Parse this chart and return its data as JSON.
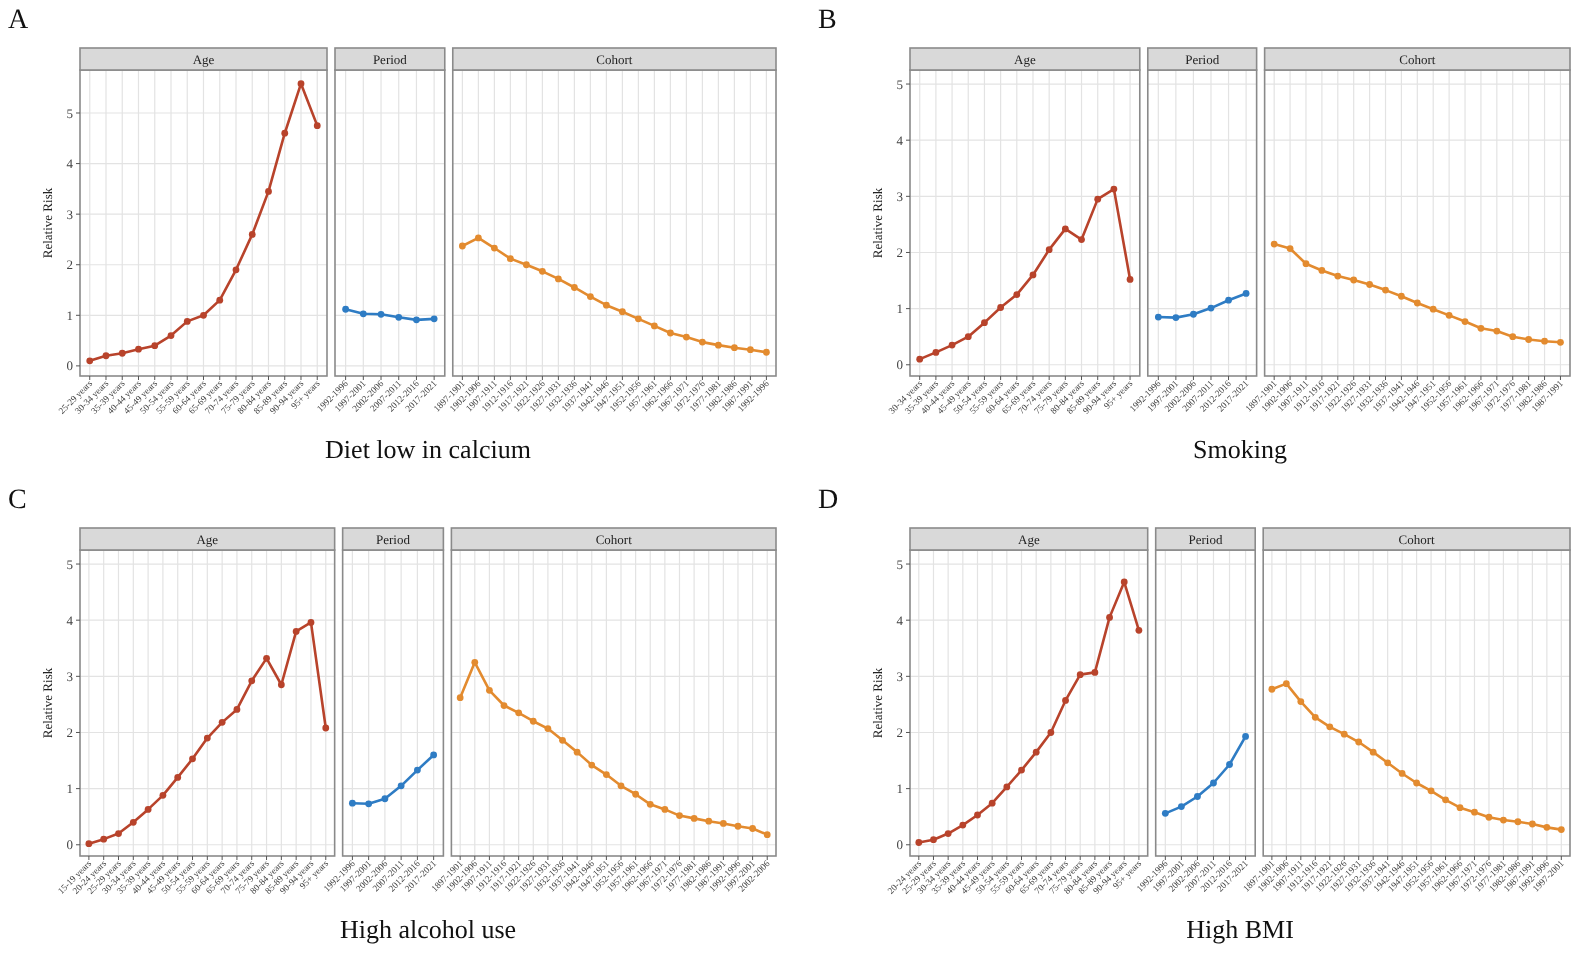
{
  "chart_data": [
    {
      "type": "line",
      "title": "Age",
      "ylabel": "Relative Risk",
      "annotations": [
        "A"
      ],
      "categories": [
        "25-29 years",
        "30-34 years",
        "35-39 years",
        "40-44 years",
        "45-49 years",
        "50-54 years",
        "55-59 years",
        "60-64 years",
        "65-69 years",
        "70-74 years",
        "75-79 years",
        "80-84 years",
        "85-89 years",
        "90-94 years",
        "95+ years"
      ],
      "series": [
        {
          "color": "#b8432b",
          "values": [
            0.1,
            0.2,
            0.25,
            0.33,
            0.4,
            0.6,
            0.88,
            1.0,
            1.3,
            1.9,
            2.6,
            3.45,
            4.6,
            5.58,
            4.75
          ]
        }
      ],
      "ylim": [
        -0.2,
        5.85
      ],
      "yticks": [
        0,
        1,
        2,
        3,
        4,
        5
      ],
      "grid": true,
      "marker": "circle"
    },
    {
      "type": "line",
      "title": "Period",
      "xlabel": "Diet low in calcium",
      "categories": [
        "1992-1996",
        "1997-2001",
        "2002-2006",
        "2007-2011",
        "2012-2016",
        "2017-2021"
      ],
      "series": [
        {
          "color": "#2e7cc4",
          "values": [
            1.12,
            1.03,
            1.02,
            0.96,
            0.91,
            0.93
          ]
        }
      ],
      "ylim": [
        -0.2,
        5.85
      ],
      "yticks": [
        0,
        1,
        2,
        3,
        4,
        5
      ],
      "grid": true,
      "marker": "circle",
      "tick_labels": "x"
    },
    {
      "type": "line",
      "title": "Cohort",
      "categories": [
        "1897-1901",
        "1902-1906",
        "1907-1911",
        "1912-1916",
        "1917-1921",
        "1922-1926",
        "1927-1931",
        "1932-1936",
        "1937-1941",
        "1942-1946",
        "1947-1951",
        "1952-1956",
        "1957-1961",
        "1962-1966",
        "1967-1971",
        "1972-1976",
        "1977-1981",
        "1982-1986",
        "1987-1991",
        "1992-1996"
      ],
      "series": [
        {
          "color": "#e38b2f",
          "values": [
            2.37,
            2.53,
            2.33,
            2.12,
            2.0,
            1.87,
            1.72,
            1.55,
            1.37,
            1.2,
            1.07,
            0.93,
            0.79,
            0.65,
            0.57,
            0.47,
            0.41,
            0.36,
            0.32,
            0.27
          ]
        }
      ],
      "ylim": [
        -0.2,
        5.85
      ],
      "yticks": [
        0,
        1,
        2,
        3,
        4,
        5
      ],
      "grid": true,
      "marker": "circle",
      "tick_labels": "x"
    },
    {
      "type": "line",
      "title": "Age",
      "ylabel": "Relative Risk",
      "annotations": [
        "B"
      ],
      "categories": [
        "30-34 years",
        "35-39 years",
        "40-44 years",
        "45-49 years",
        "50-54 years",
        "55-59 years",
        "60-64 years",
        "65-69 years",
        "70-74 years",
        "75-79 years",
        "80-84 years",
        "85-89 years",
        "90-94 years",
        "95+ years"
      ],
      "series": [
        {
          "color": "#b8432b",
          "values": [
            0.1,
            0.22,
            0.35,
            0.5,
            0.75,
            1.02,
            1.25,
            1.6,
            2.05,
            2.42,
            2.23,
            2.95,
            3.13,
            1.52
          ]
        }
      ],
      "ylim": [
        -0.2,
        5.25
      ],
      "yticks": [
        0,
        1,
        2,
        3,
        4,
        5
      ],
      "grid": true,
      "marker": "circle"
    },
    {
      "type": "line",
      "title": "Period",
      "xlabel": "Smoking",
      "categories": [
        "1992-1996",
        "1997-2001",
        "2002-2006",
        "2007-2011",
        "2012-2016",
        "2017-2021"
      ],
      "series": [
        {
          "color": "#2e7cc4",
          "values": [
            0.85,
            0.84,
            0.9,
            1.01,
            1.15,
            1.27
          ]
        }
      ],
      "ylim": [
        -0.2,
        5.25
      ],
      "yticks": [
        0,
        1,
        2,
        3,
        4,
        5
      ],
      "grid": true,
      "marker": "circle",
      "tick_labels": "x"
    },
    {
      "type": "line",
      "title": "Cohort",
      "categories": [
        "1897-1901",
        "1902-1906",
        "1907-1911",
        "1912-1916",
        "1917-1921",
        "1922-1926",
        "1927-1931",
        "1932-1936",
        "1937-1941",
        "1942-1946",
        "1947-1951",
        "1952-1956",
        "1957-1961",
        "1962-1966",
        "1967-1971",
        "1972-1976",
        "1977-1981",
        "1982-1986",
        "1987-1991"
      ],
      "series": [
        {
          "color": "#e38b2f",
          "values": [
            2.15,
            2.07,
            1.8,
            1.68,
            1.58,
            1.51,
            1.43,
            1.33,
            1.22,
            1.1,
            0.99,
            0.88,
            0.77,
            0.65,
            0.6,
            0.5,
            0.45,
            0.42,
            0.4
          ]
        }
      ],
      "ylim": [
        -0.2,
        5.25
      ],
      "yticks": [
        0,
        1,
        2,
        3,
        4,
        5
      ],
      "grid": true,
      "marker": "circle",
      "tick_labels": "x"
    },
    {
      "type": "line",
      "title": "Age",
      "ylabel": "Relative Risk",
      "annotations": [
        "C"
      ],
      "categories": [
        "15-19 years",
        "20-24 years",
        "25-29 years",
        "30-34 years",
        "35-39 years",
        "40-44 years",
        "45-49 years",
        "50-54 years",
        "55-59 years",
        "60-64 years",
        "65-69 years",
        "70-74 years",
        "75-79 years",
        "80-84 years",
        "85-89 years",
        "90-94 years",
        "95+ years"
      ],
      "series": [
        {
          "color": "#b8432b",
          "values": [
            0.02,
            0.1,
            0.2,
            0.4,
            0.63,
            0.88,
            1.2,
            1.53,
            1.9,
            2.18,
            2.41,
            2.92,
            3.32,
            2.85,
            3.8,
            3.96,
            2.08
          ]
        }
      ],
      "ylim": [
        -0.2,
        5.25
      ],
      "yticks": [
        0,
        1,
        2,
        3,
        4,
        5
      ],
      "grid": true,
      "marker": "circle"
    },
    {
      "type": "line",
      "title": "Period",
      "xlabel": "High alcohol use",
      "categories": [
        "1992-1996",
        "1997-2001",
        "2002-2006",
        "2007-2011",
        "2012-2016",
        "2017-2021"
      ],
      "series": [
        {
          "color": "#2e7cc4",
          "values": [
            0.74,
            0.73,
            0.82,
            1.05,
            1.33,
            1.6
          ]
        }
      ],
      "ylim": [
        -0.2,
        5.25
      ],
      "yticks": [
        0,
        1,
        2,
        3,
        4,
        5
      ],
      "grid": true,
      "marker": "circle",
      "tick_labels": "x"
    },
    {
      "type": "line",
      "title": "Cohort",
      "categories": [
        "1897-1901",
        "1902-1906",
        "1907-1911",
        "1912-1916",
        "1917-1921",
        "1922-1926",
        "1927-1931",
        "1932-1936",
        "1937-1941",
        "1942-1946",
        "1947-1951",
        "1952-1956",
        "1957-1961",
        "1962-1966",
        "1967-1971",
        "1972-1976",
        "1977-1981",
        "1982-1986",
        "1987-1991",
        "1992-1996",
        "1997-2001",
        "2002-2006"
      ],
      "series": [
        {
          "color": "#e38b2f",
          "values": [
            2.62,
            3.25,
            2.75,
            2.48,
            2.35,
            2.2,
            2.07,
            1.86,
            1.65,
            1.42,
            1.25,
            1.05,
            0.9,
            0.72,
            0.63,
            0.52,
            0.47,
            0.42,
            0.38,
            0.33,
            0.29,
            0.18
          ]
        }
      ],
      "ylim": [
        -0.2,
        5.25
      ],
      "yticks": [
        0,
        1,
        2,
        3,
        4,
        5
      ],
      "grid": true,
      "marker": "circle",
      "tick_labels": "x"
    },
    {
      "type": "line",
      "title": "Age",
      "ylabel": "Relative Risk",
      "annotations": [
        "D"
      ],
      "categories": [
        "20-24 years",
        "25-29 years",
        "30-34 years",
        "35-39 years",
        "40-44 years",
        "45-49 years",
        "50-54 years",
        "55-59 years",
        "60-64 years",
        "65-69 years",
        "70-74 years",
        "75-79 years",
        "80-84 years",
        "85-89 years",
        "90-94 years",
        "95+ years"
      ],
      "series": [
        {
          "color": "#b8432b",
          "values": [
            0.04,
            0.09,
            0.2,
            0.35,
            0.53,
            0.74,
            1.03,
            1.33,
            1.65,
            2.0,
            2.57,
            3.03,
            3.07,
            4.05,
            4.68,
            3.82
          ]
        }
      ],
      "ylim": [
        -0.2,
        5.25
      ],
      "yticks": [
        0,
        1,
        2,
        3,
        4,
        5
      ],
      "grid": true,
      "marker": "circle"
    },
    {
      "type": "line",
      "title": "Period",
      "xlabel": "High BMI",
      "categories": [
        "1992-1996",
        "1997-2001",
        "2002-2006",
        "2007-2011",
        "2012-2016",
        "2017-2021"
      ],
      "series": [
        {
          "color": "#2e7cc4",
          "values": [
            0.56,
            0.68,
            0.86,
            1.1,
            1.43,
            1.93
          ]
        }
      ],
      "ylim": [
        -0.2,
        5.25
      ],
      "yticks": [
        0,
        1,
        2,
        3,
        4,
        5
      ],
      "grid": true,
      "marker": "circle",
      "tick_labels": "x"
    },
    {
      "type": "line",
      "title": "Cohort",
      "categories": [
        "1897-1901",
        "1902-1906",
        "1907-1911",
        "1912-1916",
        "1917-1921",
        "1922-1926",
        "1927-1931",
        "1932-1936",
        "1937-1941",
        "1942-1946",
        "1947-1951",
        "1952-1956",
        "1957-1961",
        "1962-1966",
        "1967-1971",
        "1972-1976",
        "1977-1981",
        "1982-1986",
        "1987-1991",
        "1992-1996",
        "1997-2001"
      ],
      "series": [
        {
          "color": "#e38b2f",
          "values": [
            2.77,
            2.87,
            2.55,
            2.27,
            2.1,
            1.97,
            1.83,
            1.65,
            1.46,
            1.27,
            1.1,
            0.96,
            0.8,
            0.66,
            0.58,
            0.49,
            0.44,
            0.41,
            0.37,
            0.31,
            0.27
          ]
        }
      ],
      "ylim": [
        -0.2,
        5.25
      ],
      "yticks": [
        0,
        1,
        2,
        3,
        4,
        5
      ],
      "grid": true,
      "marker": "circle",
      "tick_labels": "x"
    }
  ]
}
